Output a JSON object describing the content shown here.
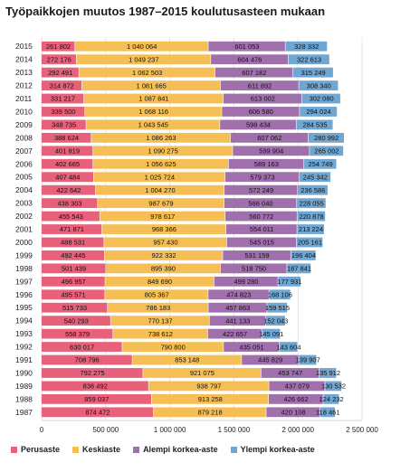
{
  "title": "Työpaikkojen muutos 1987–2015 koulutusasteen mukaan",
  "chart_data": {
    "type": "bar",
    "orientation": "horizontal",
    "stacked": true,
    "title": "Työpaikkojen muutos 1987–2015 koulutusasteen mukaan",
    "xlabel": "",
    "ylabel": "",
    "xlim": [
      0,
      2500000
    ],
    "xticks": [
      0,
      500000,
      1000000,
      1500000,
      2000000,
      2500000
    ],
    "xtick_labels": [
      "0",
      "500 000",
      "1 000 000",
      "1 500 000",
      "2 000 000",
      "2 500 000"
    ],
    "grid": true,
    "legend_position": "bottom",
    "categories": [
      "2015",
      "2014",
      "2013",
      "2012",
      "2011",
      "2010",
      "2009",
      "2008",
      "2007",
      "2006",
      "2005",
      "2004",
      "2003",
      "2002",
      "2001",
      "2000",
      "1999",
      "1998",
      "1997",
      "1996",
      "1995",
      "1994",
      "1993",
      "1992",
      "1991",
      "1990",
      "1989",
      "1988",
      "1987"
    ],
    "series": [
      {
        "name": "Perusaste",
        "color": "#e8607a",
        "values": [
          261802,
          272176,
          292491,
          314872,
          331217,
          339500,
          348735,
          388624,
          401819,
          402665,
          407484,
          422642,
          438303,
          455543,
          471871,
          488531,
          492445,
          501439,
          496957,
          495571,
          515733,
          540293,
          558379,
          630017,
          708796,
          792275,
          836492,
          859037,
          874472
        ],
        "labels": [
          "261 802",
          "272 176",
          "292 491",
          "314 872",
          "331 217",
          "339 500",
          "348 735",
          "388 624",
          "401 819",
          "402 665",
          "407 484",
          "422 642",
          "438 303",
          "455 543",
          "471 871",
          "488 531",
          "492 445",
          "501 439",
          "496 957",
          "495 571",
          "515 733",
          "540 293",
          "558 379",
          "630 017",
          "708 796",
          "792 275",
          "836 492",
          "859 037",
          "874 472"
        ]
      },
      {
        "name": "Keskiaste",
        "color": "#f6bf55",
        "values": [
          1040064,
          1049237,
          1062503,
          1081665,
          1087841,
          1068116,
          1043545,
          1086263,
          1090275,
          1056625,
          1025724,
          1004270,
          987679,
          978617,
          968366,
          957430,
          922332,
          895390,
          849690,
          805367,
          786183,
          770137,
          738612,
          790800,
          853148,
          921075,
          938797,
          913258,
          879218
        ],
        "labels": [
          "1 040 064",
          "1 049 237",
          "1 062 503",
          "1 081 665",
          "1 087 841",
          "1 068 116",
          "1 043 545",
          "1 086 263",
          "1 090 275",
          "1 056 625",
          "1 025 724",
          "1 004 270",
          "987 679",
          "978 617",
          "968 366",
          "957 430",
          "922 332",
          "895 390",
          "849 690",
          "805 367",
          "786 183",
          "770 137",
          "738 612",
          "790 800",
          "853 148",
          "921 075",
          "938 797",
          "913 258",
          "879 218"
        ]
      },
      {
        "name": "Alempi korkea-aste",
        "color": "#a070ad",
        "values": [
          601053,
          604476,
          607182,
          611892,
          613002,
          606580,
          598434,
          607062,
          599904,
          589163,
          579373,
          572249,
          566040,
          560772,
          554011,
          545015,
          531159,
          518750,
          499280,
          474823,
          457863,
          441133,
          422657,
          435051,
          445829,
          453747,
          437079,
          426662,
          420108
        ],
        "labels": [
          "601 053",
          "604 476",
          "607 182",
          "611 892",
          "613 002",
          "606 580",
          "598 434",
          "607 062",
          "599 904",
          "589 163",
          "579 373",
          "572 249",
          "566 040",
          "560 772",
          "554 011",
          "545 015",
          "531 159",
          "518 750",
          "499 280",
          "474 823",
          "457 863",
          "441 133",
          "422 657",
          "435 051",
          "445 829",
          "453 747",
          "437 079",
          "426 662",
          "420 108"
        ]
      },
      {
        "name": "Ylempi korkea-aste",
        "color": "#6fa6d2",
        "values": [
          328332,
          322613,
          315249,
          308340,
          302080,
          294024,
          284535,
          280992,
          265002,
          254749,
          245342,
          236586,
          228055,
          220878,
          213224,
          205161,
          196404,
          187841,
          177931,
          168106,
          159515,
          152043,
          145091,
          143604,
          139907,
          135912,
          130532,
          124232,
          118461
        ],
        "labels": [
          "328 332",
          "322 613",
          "315 249",
          "308 340",
          "302 080",
          "294 024",
          "284 535",
          "280 992",
          "265 002",
          "254 749",
          "245 342",
          "236 586",
          "228 055",
          "220 878",
          "213 224",
          "205 161",
          "196 404",
          "187 841",
          "177 931",
          "168 106",
          "159 515",
          "152 043",
          "145 091",
          "143 604",
          "139 907",
          "135 912",
          "130 532",
          "124 232",
          "118 461"
        ]
      }
    ]
  }
}
